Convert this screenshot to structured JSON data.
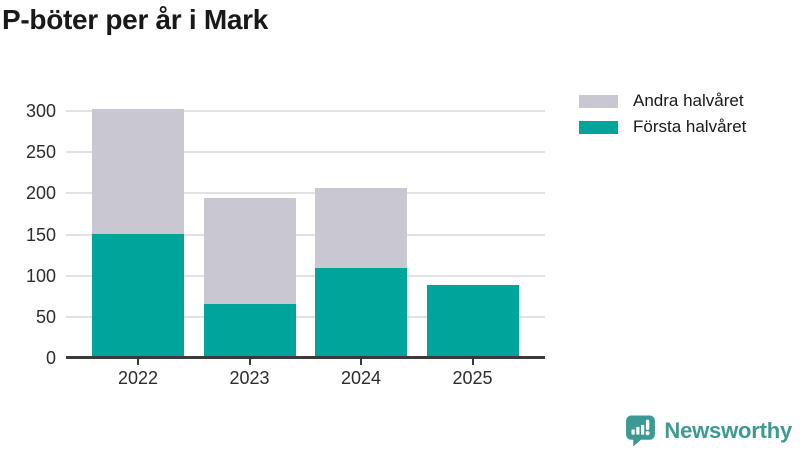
{
  "chart": {
    "title": "P-böter per år i Mark"
  },
  "chart_data": {
    "type": "bar",
    "stacked": true,
    "title": "P-böter per år i Mark",
    "categories": [
      "2022",
      "2023",
      "2024",
      "2025"
    ],
    "series": [
      {
        "name": "Första halvåret",
        "color": "#00a49b",
        "values": [
          148,
          63,
          107,
          86
        ]
      },
      {
        "name": "Andra halvåret",
        "color": "#c9c7d1",
        "values": [
          152,
          129,
          97,
          0
        ]
      }
    ],
    "xlabel": "",
    "ylabel": "",
    "ylim": [
      0,
      300
    ],
    "yticks": [
      0,
      50,
      100,
      150,
      200,
      250,
      300
    ],
    "grid": true,
    "legend_position": "top-right",
    "legend_order_top_to_bottom": [
      "Andra halvåret",
      "Första halvåret"
    ]
  },
  "legend": {
    "items": [
      {
        "label": "Andra halvåret",
        "color": "#c9c7d1"
      },
      {
        "label": "Första halvåret",
        "color": "#00a49b"
      }
    ]
  },
  "branding": {
    "name": "Newsworthy",
    "color": "#3d9a93",
    "icon": "newsworthy-chart-bubble-icon"
  },
  "colors": {
    "first_half_bar": "#00a49b",
    "second_half_bar": "#c9c7d1",
    "title_text": "#191919",
    "axis_text": "#2d2d2d",
    "gridline": "#e2e2e2",
    "axis_line": "#3a3a3a",
    "background": "#ffffff"
  }
}
